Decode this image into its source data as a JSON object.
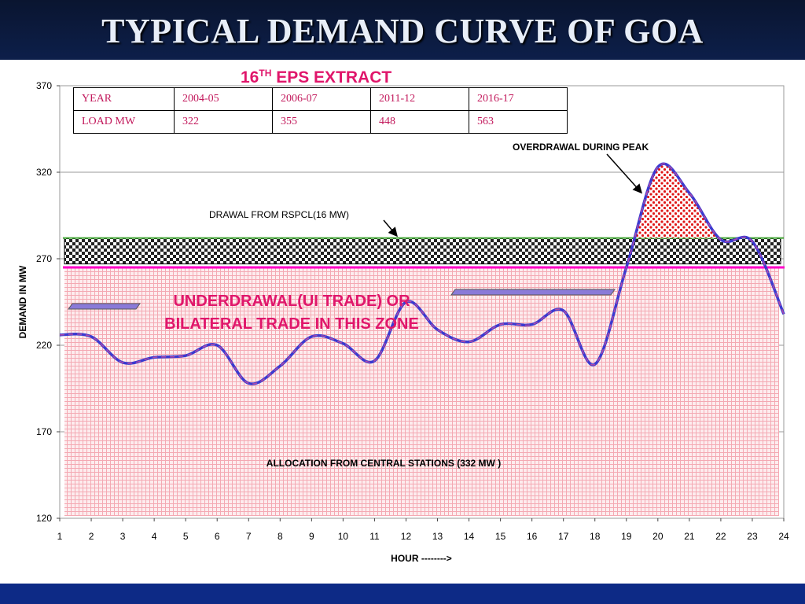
{
  "slide": {
    "title": "TYPICAL DEMAND CURVE OF GOA"
  },
  "eps": {
    "title": "16",
    "sup": "TH",
    "rest": " EPS EXTRACT"
  },
  "table": {
    "rows": [
      {
        "label": "YEAR",
        "cells": [
          "2004-05",
          "2006-07",
          "2011-12",
          "2016-17"
        ]
      },
      {
        "label": "LOAD MW",
        "cells": [
          "322",
          "355",
          "448",
          "563"
        ]
      }
    ]
  },
  "chart_data": {
    "type": "line",
    "xlabel": "HOUR -------->",
    "ylabel": "DEMAND IN MW",
    "xlim": [
      1,
      24
    ],
    "ylim": [
      120,
      370
    ],
    "x_ticks": [
      1,
      2,
      3,
      4,
      5,
      6,
      7,
      8,
      9,
      10,
      11,
      12,
      13,
      14,
      15,
      16,
      17,
      18,
      19,
      20,
      21,
      22,
      23,
      24
    ],
    "y_ticks": [
      120,
      170,
      220,
      270,
      320,
      370
    ],
    "grid": "horizontal",
    "series": [
      {
        "values": [
          [
            1,
            226
          ],
          [
            2,
            225
          ],
          [
            3,
            210
          ],
          [
            4,
            213
          ],
          [
            5,
            214
          ],
          [
            6,
            220
          ],
          [
            7,
            198
          ],
          [
            8,
            208
          ],
          [
            9,
            225
          ],
          [
            10,
            221
          ],
          [
            11,
            211
          ],
          [
            12,
            245
          ],
          [
            13,
            229
          ],
          [
            14,
            222
          ],
          [
            15,
            232
          ],
          [
            16,
            232
          ],
          [
            17,
            240
          ],
          [
            18,
            209
          ],
          [
            19,
            265
          ],
          [
            20,
            323
          ],
          [
            21,
            308
          ],
          [
            22,
            281
          ],
          [
            23,
            280
          ],
          [
            24,
            238
          ]
        ]
      }
    ],
    "bands": {
      "allocation_top": 265,
      "drawal_bottom": 267,
      "drawal_top": 282
    },
    "annotations": {
      "overdrawal": "OVERDRAWAL DURING PEAK",
      "drawal": "DRAWAL FROM RSPCL(16 MW)",
      "underdrawal_line1": "UNDERDRAWAL(UI TRADE) OR",
      "underdrawal_line2": "BILATERAL TRADE IN THIS ZONE",
      "allocation": "ALLOCATION FROM CENTRAL STATIONS (332 MW )"
    },
    "colors": {
      "curve": "#3a3ad0",
      "curve_dash": "#b04aa8",
      "allocation_fill": "#f4a9b3",
      "allocation_line": "#ff00c8",
      "drawal_top_line": "#3aa832",
      "overdrawal_dots": "#e01818",
      "annotation_red": "#e0166b"
    }
  }
}
